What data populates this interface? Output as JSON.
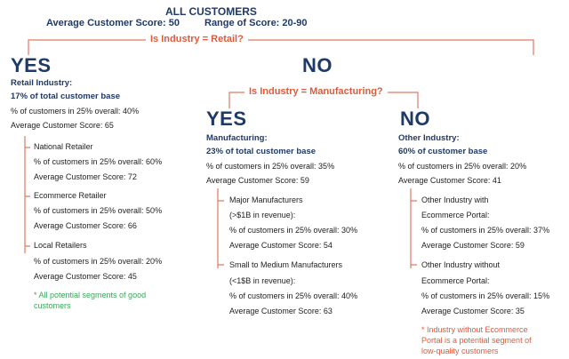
{
  "header": {
    "title": "ALL CUSTOMERS",
    "avg_score": "Average Customer Score: 50",
    "range_score": "Range of Score: 20-90"
  },
  "q1": {
    "question": "Is Industry = Retail?",
    "yes_label": "YES",
    "no_label": "NO"
  },
  "retail": {
    "title": "Retail Industry:",
    "share": "17% of total customer base",
    "pct_overall": "% of customers in 25% overall: 40%",
    "avg_score": "Average Customer Score: 65",
    "segments": [
      {
        "name": "National Retailer",
        "pct": "% of customers in 25% overall: 60%",
        "score": "Average Customer Score: 72"
      },
      {
        "name": "Ecommerce Retailer",
        "pct": "% of customers in 25% overall: 50%",
        "score": "Average Customer Score: 66"
      },
      {
        "name": "Local Retailers",
        "pct": "% of customers in 25% overall: 20%",
        "score": "Average Customer Score: 45"
      }
    ],
    "note_line1": "* All potential segments of good",
    "note_line2": "customers"
  },
  "q2": {
    "question": "Is Industry = Manufacturing?",
    "yes_label": "YES",
    "no_label": "NO"
  },
  "manufacturing": {
    "title": "Manufacturing:",
    "share": "23% of total customer base",
    "pct_overall": "% of customers in 25% overall: 35%",
    "avg_score": "Average Customer Score: 59",
    "segments": [
      {
        "name1": "Major Manufacturers",
        "name2": "(>$1B in revenue):",
        "pct": "% of customers in 25% overall: 30%",
        "score": "Average Customer Score: 54"
      },
      {
        "name1": "Small to Medium Manufacturers",
        "name2": "(<1$B in revenue):",
        "pct": "% of customers in 25% overall: 40%",
        "score": "Average Customer Score: 63"
      }
    ]
  },
  "other": {
    "title": "Other Industry:",
    "share": "60% of customer base",
    "pct_overall": "% of customers in 25% overall: 20%",
    "avg_score": "Average Customer Score: 41",
    "segments": [
      {
        "name1": "Other Industry with",
        "name2": "Ecommerce Portal:",
        "pct": "% of customers in 25% overall: 37%",
        "score": "Average Customer Score: 59"
      },
      {
        "name1": "Other Industry without",
        "name2": "Ecommerce Portal:",
        "pct": "% of customers in 25% overall: 15%",
        "score": "Average Customer Score: 35"
      }
    ],
    "note_line1": "* Industry without Ecommerce",
    "note_line2": "Portal is a potential segment of",
    "note_line3": "low-quality customers"
  },
  "colors": {
    "navy": "#1f3a68",
    "accent": "#e05a3a",
    "green": "#3aa657"
  }
}
